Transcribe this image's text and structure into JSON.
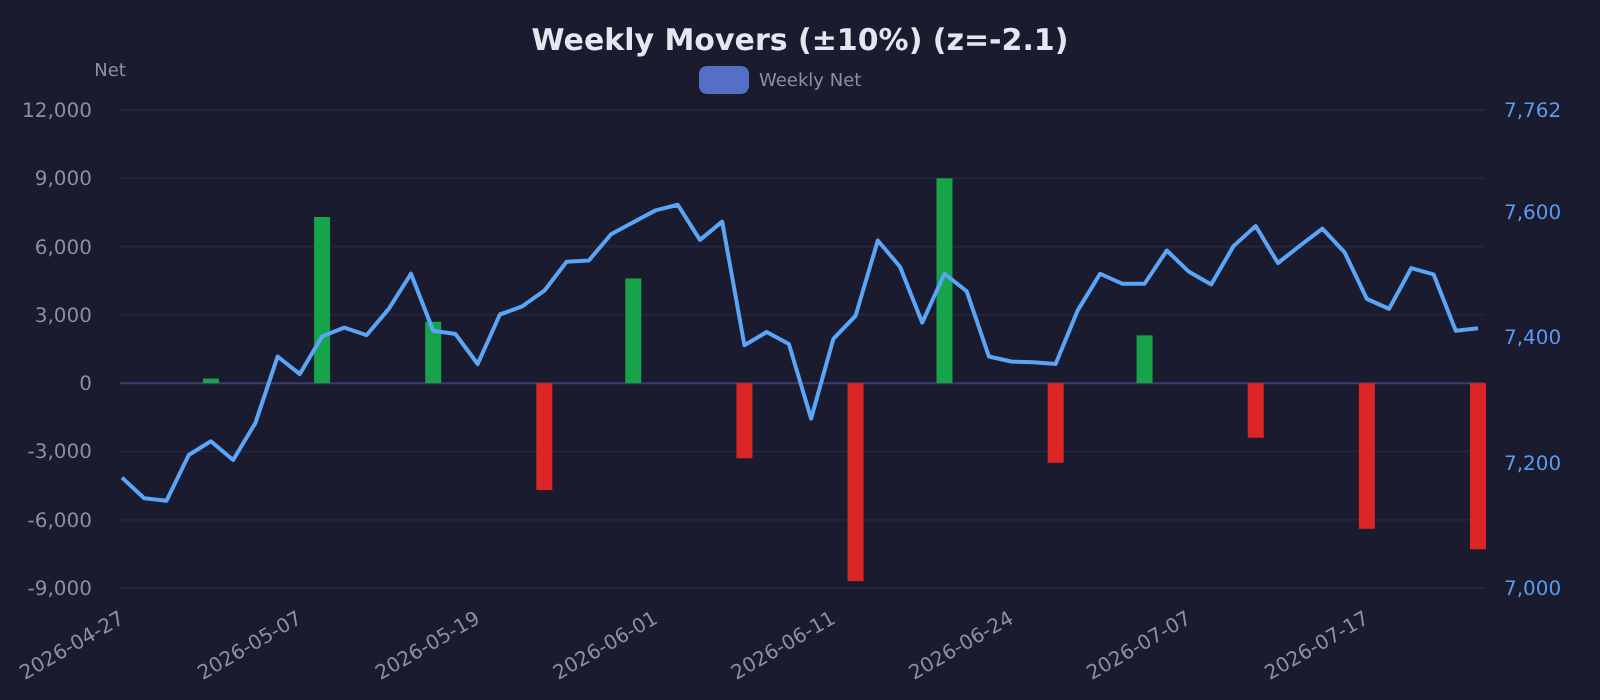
{
  "chart_data": {
    "type": "bar",
    "title": "Weekly Movers (±10%) (z=-2.1)",
    "ylabel": "Net",
    "categories": [
      "2026-04-27",
      null,
      null,
      null,
      null,
      null,
      null,
      null,
      "2026-05-07",
      null,
      null,
      null,
      null,
      null,
      null,
      null,
      "2026-05-19",
      null,
      null,
      null,
      null,
      null,
      null,
      null,
      "2026-06-01",
      null,
      null,
      null,
      null,
      null,
      null,
      null,
      "2026-06-11",
      null,
      null,
      null,
      null,
      null,
      null,
      null,
      "2026-06-24",
      null,
      null,
      null,
      null,
      null,
      null,
      null,
      "2026-07-07",
      null,
      null,
      null,
      null,
      null,
      null,
      null,
      "2026-07-17",
      null,
      null,
      null,
      null,
      null
    ],
    "series": [
      {
        "name": "Weekly Net",
        "color": "#5470c6",
        "values": [
          null,
          null,
          null,
          null,
          200,
          null,
          null,
          null,
          null,
          7300,
          null,
          null,
          null,
          null,
          2700,
          null,
          null,
          null,
          null,
          -4700,
          null,
          null,
          null,
          4600,
          null,
          null,
          null,
          null,
          -3300,
          null,
          null,
          null,
          null,
          -8700,
          null,
          null,
          null,
          9000,
          null,
          null,
          null,
          null,
          -3500,
          null,
          null,
          null,
          2100,
          null,
          null,
          null,
          null,
          -2400,
          null,
          null,
          null,
          null,
          -6400,
          null,
          null,
          null,
          null,
          -7300
        ],
        "colors": [
          null,
          null,
          null,
          null,
          "#16a34a",
          null,
          null,
          null,
          null,
          "#16a34a",
          null,
          null,
          null,
          null,
          "#16a34a",
          null,
          null,
          null,
          null,
          "#dc2626",
          null,
          null,
          null,
          "#16a34a",
          null,
          null,
          null,
          null,
          "#dc2626",
          null,
          null,
          null,
          null,
          "#dc2626",
          null,
          null,
          null,
          "#16a34a",
          null,
          null,
          null,
          null,
          "#dc2626",
          null,
          null,
          null,
          "#16a34a",
          null,
          null,
          null,
          null,
          "#dc2626",
          null,
          null,
          null,
          null,
          "#dc2626",
          null,
          null,
          null,
          null,
          "#dc2626"
        ]
      },
      {
        "type": "line",
        "axis": "y2",
        "color": "#5aa5f5",
        "values": [
          7176,
          7143,
          7139,
          7212,
          7234,
          7204,
          7263,
          7369,
          7341,
          7401,
          7415,
          7403,
          7445,
          7501,
          7410,
          7405,
          7357,
          7436,
          7449,
          7474,
          7520,
          7522,
          7564,
          7583,
          7602,
          7611,
          7555,
          7584,
          7387,
          7408,
          7389,
          7270,
          7397,
          7434,
          7554,
          7512,
          7423,
          7501,
          7473,
          7369,
          7361,
          7360,
          7357,
          7443,
          7501,
          7485,
          7485,
          7538,
          7504,
          7484,
          7545,
          7577,
          7518,
          7546,
          7573,
          7535,
          7461,
          7445,
          7510,
          7500,
          7410,
          7414
        ]
      }
    ],
    "ylim": [
      -9000,
      12000
    ],
    "yticks": [
      {
        "value": -9000,
        "label": "-9,000"
      },
      {
        "value": -6000,
        "label": "-6,000"
      },
      {
        "value": -3000,
        "label": "-3,000"
      },
      0,
      {
        "value": 3000,
        "label": "3,000"
      },
      {
        "value": 6000,
        "label": "6,000"
      },
      {
        "value": 9000,
        "label": "9,000"
      },
      {
        "value": 12000,
        "label": "12,000"
      }
    ],
    "y2lim": [
      7000,
      7762
    ],
    "y2ticks": [
      {
        "value": 7000,
        "label": "7,000"
      },
      {
        "value": 7200,
        "label": "7,200"
      },
      {
        "value": 7400,
        "label": "7,400"
      },
      {
        "value": 7600,
        "label": "7,600"
      },
      {
        "value": 7762,
        "label": "7,762"
      }
    ],
    "ref_lines": [
      {
        "axis": "y",
        "value": 0,
        "color": "#3a3d6b"
      }
    ],
    "grid": "y",
    "legend": "top"
  }
}
